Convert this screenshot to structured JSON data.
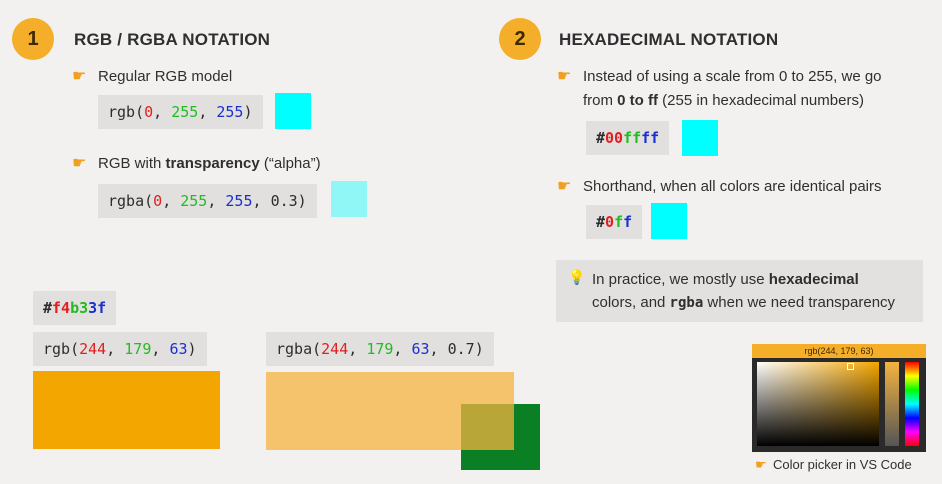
{
  "section1": {
    "number": "1",
    "title": "RGB / RGBA NOTATION",
    "bullet1": "Regular RGB model",
    "bullet2_prefix": "RGB with ",
    "bullet2_bold": "transparency",
    "bullet2_suffix": " (“alpha”)",
    "rgb_code": {
      "fn": "rgb",
      "r": "0",
      "g": "255",
      "b": "255"
    },
    "rgba_code": {
      "fn": "rgba",
      "r": "0",
      "g": "255",
      "b": "255",
      "a": "0.3"
    }
  },
  "section2": {
    "number": "2",
    "title": "HEXADECIMAL NOTATION",
    "bullet1_line1": "Instead of using a scale from 0 to 255, we go",
    "bullet1_line2_prefix": "from ",
    "bullet1_line2_bold": "0 to ff",
    "bullet1_line2_suffix": " (255 in hexadecimal numbers)",
    "hex_code": {
      "hash": "#",
      "r": "00",
      "g": "ff",
      "b": "ff"
    },
    "bullet2": "Shorthand, when all colors are identical pairs",
    "short_code": {
      "hash": "#",
      "r": "0",
      "g": "f",
      "b": "f"
    }
  },
  "note": {
    "line1_prefix": "In practice, we mostly use ",
    "line1_bold": "hexadecimal",
    "line2_prefix": "colors, and ",
    "line2_code": "rgba",
    "line2_suffix": " when we need transparency"
  },
  "bottom": {
    "hex_code": {
      "hash": "#",
      "r": "f4",
      "g": "b3",
      "b": "3f"
    },
    "rgb_code": {
      "fn": "rgb",
      "r": "244",
      "g": "179",
      "b": "63"
    },
    "rgba_code": {
      "fn": "rgba",
      "r": "244",
      "g": "179",
      "b": "63",
      "a": "0.7"
    }
  },
  "picker": {
    "readout": "rgb(244, 179, 63)",
    "caption": "Color picker in VS Code"
  },
  "colors": {
    "accent": "#f5ae29",
    "cyan": "#00ffff",
    "orange": "#f4b33f",
    "green": "#0a7f24"
  }
}
